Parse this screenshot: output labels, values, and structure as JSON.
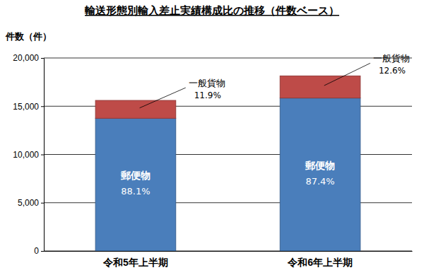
{
  "chart_data": {
    "type": "bar",
    "title": "輸送形態別輸入差止実績構成比の推移（件数ベース）",
    "y_label": "件数（件）",
    "categories": [
      "令和5年上半期",
      "令和6年上半期"
    ],
    "series": [
      {
        "name": "郵便物",
        "color": "#4a7ebb",
        "values": [
          13750,
          15850
        ],
        "shares": [
          88.1,
          87.4
        ],
        "share_labels": [
          "88.1%",
          "87.4%"
        ]
      },
      {
        "name": "一般貨物",
        "color": "#be4b48",
        "values": [
          1850,
          2290
        ],
        "shares": [
          11.9,
          12.6
        ],
        "share_labels": [
          "11.9%",
          "12.6%"
        ]
      }
    ],
    "stacked": true,
    "grid": true,
    "ylim": [
      0,
      20000
    ],
    "yticks": [
      0,
      {
        "value": 5000,
        "label": "5,000"
      },
      {
        "value": 10000,
        "label": "10,000"
      },
      {
        "value": 15000,
        "label": "15,000"
      },
      {
        "value": 20000,
        "label": "20,000"
      }
    ]
  }
}
